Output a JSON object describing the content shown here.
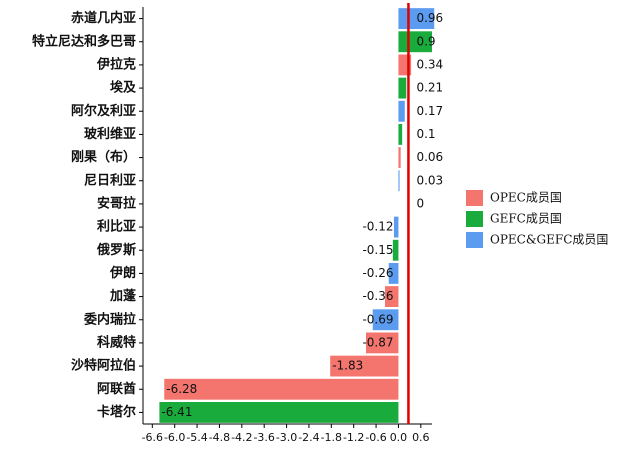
{
  "chart_data": {
    "type": "barh",
    "categories": [
      "赤道几内亚",
      "特立尼达和多巴哥",
      "伊拉克",
      "埃及",
      "阿尔及利亚",
      "玻利维亚",
      "刚果（布）",
      "尼日利亚",
      "安哥拉",
      "利比亚",
      "俄罗斯",
      "伊朗",
      "加蓬",
      "委内瑞拉",
      "科威特",
      "沙特阿拉伯",
      "阿联酋",
      "卡塔尔"
    ],
    "series": [
      {
        "name": "OPEC成员国",
        "color": "#f4756e",
        "values": [
          null,
          null,
          0.34,
          null,
          null,
          null,
          0.06,
          null,
          0,
          null,
          null,
          null,
          -0.36,
          null,
          -0.87,
          -1.83,
          -6.28,
          null
        ]
      },
      {
        "name": "GEFC成员国",
        "color": "#1aab3d",
        "values": [
          null,
          0.9,
          null,
          0.21,
          null,
          0.1,
          null,
          null,
          null,
          null,
          -0.15,
          null,
          null,
          null,
          null,
          null,
          null,
          -6.41
        ]
      },
      {
        "name": "OPEC&GEFC成员国",
        "color": "#5b9bf0",
        "values": [
          0.96,
          null,
          null,
          null,
          0.17,
          null,
          null,
          0.03,
          null,
          -0.12,
          null,
          -0.26,
          null,
          -0.69,
          null,
          null,
          null,
          null
        ]
      }
    ],
    "xlim": [
      -6.85,
      0.9
    ],
    "xticks": [
      -6.6,
      {
        "value": -6.0,
        "label": "-6.0"
      },
      -5.4,
      -4.8,
      -4.2,
      -3.6,
      {
        "value": -3.0,
        "label": "-3.0"
      },
      -2.4,
      -1.8,
      -1.2,
      -0.6,
      {
        "value": 0.0,
        "label": "0.0"
      },
      0.6
    ],
    "legend": "right"
  }
}
